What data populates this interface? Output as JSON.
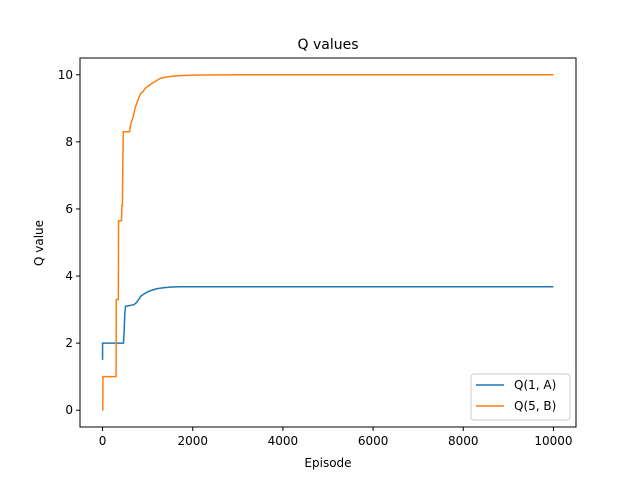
{
  "chart_data": {
    "type": "line",
    "title": "Q values",
    "xlabel": "Episode",
    "ylabel": "Q value",
    "xlim": [
      -500,
      10500
    ],
    "ylim": [
      -0.5,
      10.5
    ],
    "xticks": [
      0,
      2000,
      4000,
      6000,
      8000,
      10000
    ],
    "yticks": [
      0,
      2,
      4,
      6,
      8,
      10
    ],
    "grid": false,
    "legend_position": "lower-right",
    "series": [
      {
        "name": "Q(1, A)",
        "color": "#1f77b4",
        "x": [
          0,
          1,
          25,
          465,
          480,
          495,
          510,
          530,
          700,
          760,
          800,
          850,
          900,
          1000,
          1100,
          1200,
          1350,
          1500,
          1700,
          2000,
          3000,
          5000,
          8000,
          10000
        ],
        "y": [
          1.5,
          2.0,
          2.0,
          2.0,
          2.4,
          2.9,
          3.1,
          3.1,
          3.15,
          3.22,
          3.3,
          3.4,
          3.45,
          3.53,
          3.58,
          3.62,
          3.65,
          3.67,
          3.68,
          3.68,
          3.68,
          3.68,
          3.68,
          3.68
        ]
      },
      {
        "name": "Q(5, B)",
        "color": "#ff7f0e",
        "x": [
          0,
          5,
          10,
          300,
          305,
          350,
          355,
          420,
          430,
          440,
          450,
          460,
          470,
          480,
          600,
          620,
          680,
          720,
          760,
          800,
          850,
          900,
          950,
          1000,
          1100,
          1200,
          1300,
          1400,
          1500,
          1650,
          1800,
          2000,
          3000,
          5000,
          8000,
          10000
        ],
        "y": [
          0.0,
          0.0,
          1.0,
          1.0,
          3.3,
          3.3,
          5.65,
          5.65,
          6.1,
          6.1,
          7.4,
          8.3,
          8.3,
          8.3,
          8.3,
          8.5,
          8.75,
          9.0,
          9.15,
          9.3,
          9.45,
          9.5,
          9.6,
          9.65,
          9.75,
          9.83,
          9.9,
          9.93,
          9.95,
          9.97,
          9.98,
          9.99,
          10.0,
          10.0,
          10.0,
          10.0
        ]
      }
    ]
  }
}
